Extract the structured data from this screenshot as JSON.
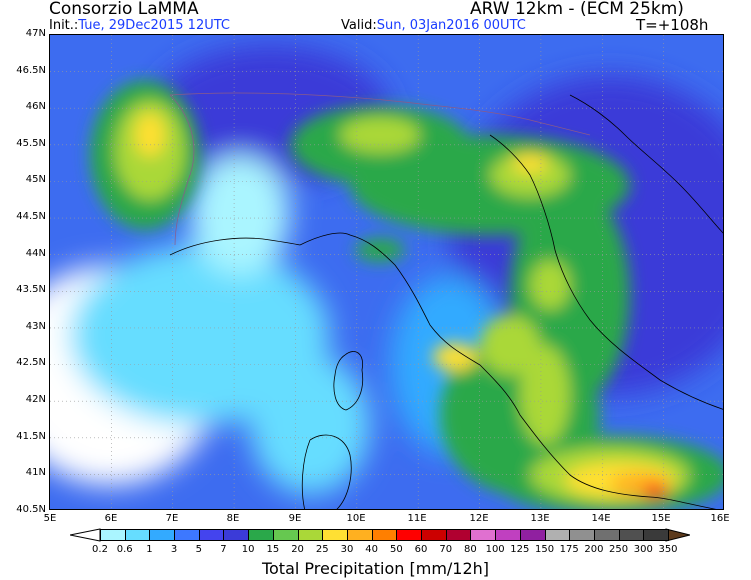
{
  "header": {
    "org": "Consorzio LaMMA",
    "model": "ARW 12km - (ECM 25km)",
    "init_label": "Init.:",
    "init_value": "Tue, 29Dec2015 12UTC",
    "valid_label": "Valid:",
    "valid_value": "Sun, 03Jan2016 00UTC",
    "forecast_step": "T=+108h"
  },
  "map": {
    "lat_labels": [
      "47N",
      "46.5N",
      "46N",
      "45.5N",
      "45N",
      "44.5N",
      "44N",
      "43.5N",
      "43N",
      "42.5N",
      "42N",
      "41.5N",
      "41N",
      "40.5N"
    ],
    "lon_labels": [
      "5E",
      "6E",
      "7E",
      "8E",
      "9E",
      "10E",
      "11E",
      "12E",
      "13E",
      "14E",
      "15E",
      "16E"
    ],
    "lat_range": [
      40.5,
      47
    ],
    "lon_range": [
      5,
      16
    ]
  },
  "colorbar": {
    "thresholds": [
      "0.2",
      "0.6",
      "1",
      "3",
      "5",
      "7",
      "10",
      "15",
      "20",
      "25",
      "30",
      "40",
      "50",
      "60",
      "70",
      "80",
      "100",
      "125",
      "150",
      "175",
      "200",
      "250",
      "300",
      "350"
    ],
    "colors": [
      "#ffffff",
      "#aaf5ff",
      "#66ddff",
      "#33aaff",
      "#3d78ff",
      "#4444ee",
      "#3b3bd8",
      "#2aa84a",
      "#66c850",
      "#aad838",
      "#ffe033",
      "#ffb020",
      "#ff7f00",
      "#ff0000",
      "#cc0000",
      "#b00030",
      "#e070d0",
      "#c040c0",
      "#9020a0",
      "#b0b0b0",
      "#909090",
      "#707070",
      "#505050",
      "#3a3a3a",
      "#5c3a1c"
    ],
    "title": "Total Precipitation [mm/12h]"
  }
}
